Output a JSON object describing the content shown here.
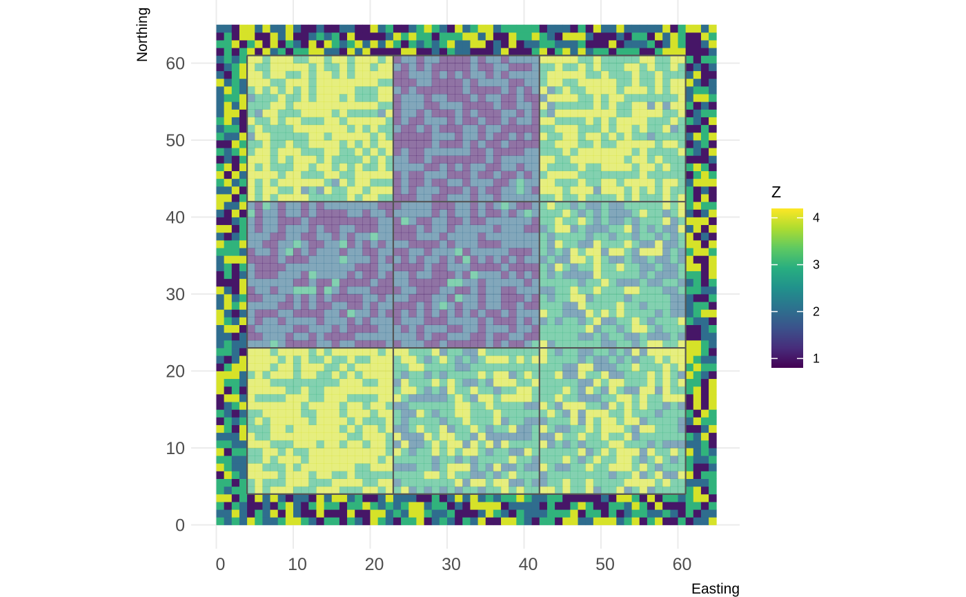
{
  "chart_data": {
    "type": "heatmap",
    "xlabel": "Easting",
    "ylabel": "Northing",
    "xlim": [
      0,
      65
    ],
    "ylim": [
      0,
      65
    ],
    "x_ticks": [
      0,
      10,
      20,
      30,
      40,
      50,
      60
    ],
    "y_ticks": [
      0,
      10,
      20,
      30,
      40,
      50,
      60
    ],
    "grid": true,
    "colorscale": "viridis",
    "colors": {
      "low": "#440154",
      "high": "#fde725",
      "block_lines": "#555555"
    },
    "legend": {
      "title": "Z",
      "position": "right",
      "ticks": [
        1,
        2,
        3,
        4
      ],
      "range": [
        0.8,
        4.2
      ]
    },
    "overlay": {
      "description_alpha_inner": 0.6,
      "block_x_edges": [
        4,
        23,
        42,
        61
      ],
      "block_y_edges": [
        4,
        23,
        42,
        61
      ]
    },
    "block_means": [
      {
        "block": "x4-23,y42-61",
        "dominant_z": 3.6
      },
      {
        "block": "x23-42,y42-61",
        "dominant_z": 1.4
      },
      {
        "block": "x42-61,y42-61",
        "dominant_z": 3.5
      },
      {
        "block": "x4-23,y23-42",
        "dominant_z": 1.6
      },
      {
        "block": "x23-42,y23-42",
        "dominant_z": 1.5
      },
      {
        "block": "x42-61,y23-42",
        "dominant_z": 2.8
      },
      {
        "block": "x4-23,y4-23",
        "dominant_z": 3.7
      },
      {
        "block": "x23-42,y4-23",
        "dominant_z": 3.0
      },
      {
        "block": "x42-61,y4-23",
        "dominant_z": 3.1
      }
    ]
  }
}
